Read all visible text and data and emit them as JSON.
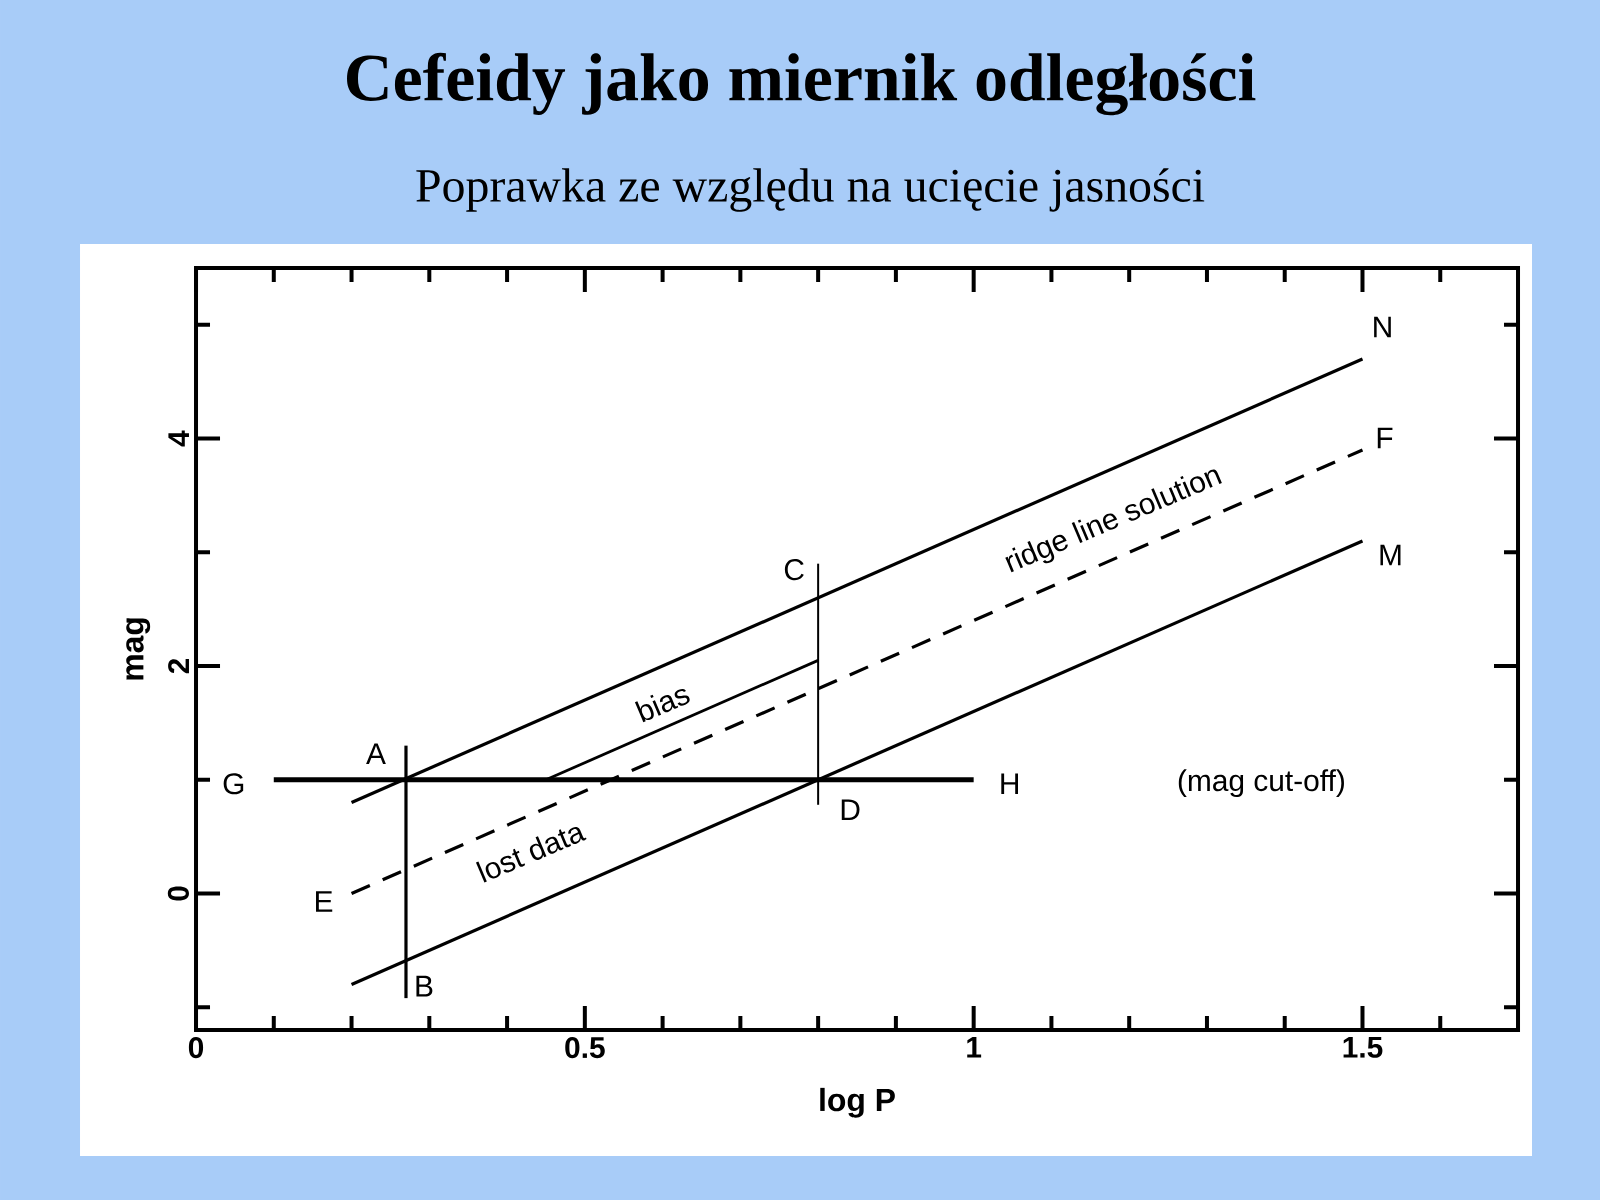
{
  "chart_data": {
    "type": "line",
    "title": "Cefeidy jako miernik odległości",
    "subtitle": "Poprawka ze względu na ucięcie jasności",
    "xlabel": "log P",
    "ylabel": "mag",
    "xlim": [
      0,
      1.7
    ],
    "ylim": [
      -1.2,
      5.5
    ],
    "xticks": [
      0,
      {
        "value": 0.1,
        "label": null
      },
      {
        "value": 0.2,
        "label": null
      },
      {
        "value": 0.3,
        "label": null
      },
      {
        "value": 0.4,
        "label": null
      },
      0.5,
      {
        "value": 0.6,
        "label": null
      },
      {
        "value": 0.7,
        "label": null
      },
      {
        "value": 0.8,
        "label": null
      },
      {
        "value": 0.9,
        "label": null
      },
      1,
      {
        "value": 1.1,
        "label": null
      },
      {
        "value": 1.2,
        "label": null
      },
      {
        "value": 1.3,
        "label": null
      },
      {
        "value": 1.4,
        "label": null
      },
      1.5,
      {
        "value": 1.6,
        "label": null
      }
    ],
    "yticks": [
      {
        "value": -1,
        "label": null
      },
      0,
      {
        "value": 1,
        "label": null
      },
      2,
      {
        "value": 3,
        "label": null
      },
      4,
      {
        "value": 5,
        "label": null
      }
    ],
    "marker": "none",
    "series": [
      {
        "color": "#000000",
        "x": [
          0.2,
          1.5
        ],
        "values": [
          0.8,
          4.7
        ]
      },
      {
        "color": "#000000",
        "x": [
          0.2,
          1.5
        ],
        "values": [
          0.0,
          3.9
        ],
        "line_style": "dashed"
      },
      {
        "color": "#000000",
        "x": [
          0.2,
          1.5
        ],
        "values": [
          -0.8,
          3.1
        ]
      },
      {
        "color": "#000000",
        "x": [
          0.45,
          0.8
        ],
        "values": [
          1.0,
          2.05
        ]
      },
      {
        "color": "#000000",
        "x": [
          0.1,
          1.0
        ],
        "values": [
          1.0,
          1.0
        ]
      },
      {
        "color": "#000000",
        "x": [
          0.27,
          0.27
        ],
        "values": [
          1.3,
          -0.92
        ]
      },
      {
        "color": "#000000",
        "x": [
          0.8,
          0.8
        ],
        "values": [
          2.9,
          0.78
        ]
      }
    ],
    "annotations": [
      {
        "text": "N",
        "x": 1.5,
        "y": 4.7
      },
      {
        "text": "F",
        "x": 1.5,
        "y": 3.9
      },
      {
        "text": "M",
        "x": 1.5,
        "y": 3.1
      },
      {
        "text": "A",
        "x": 0.27,
        "y": 1.0
      },
      {
        "text": "B",
        "x": 0.27,
        "y": -0.92
      },
      {
        "text": "C",
        "x": 0.8,
        "y": 2.9
      },
      {
        "text": "D",
        "x": 0.8,
        "y": 1.0
      },
      {
        "text": "E",
        "x": 0.2,
        "y": 0.0
      },
      {
        "text": "G",
        "x": 0.1,
        "y": 1.0
      },
      {
        "text": "H",
        "x": 1.0,
        "y": 1.0
      },
      "(mag cut-off)",
      "bias",
      "lost data",
      "ridge line solution"
    ]
  }
}
